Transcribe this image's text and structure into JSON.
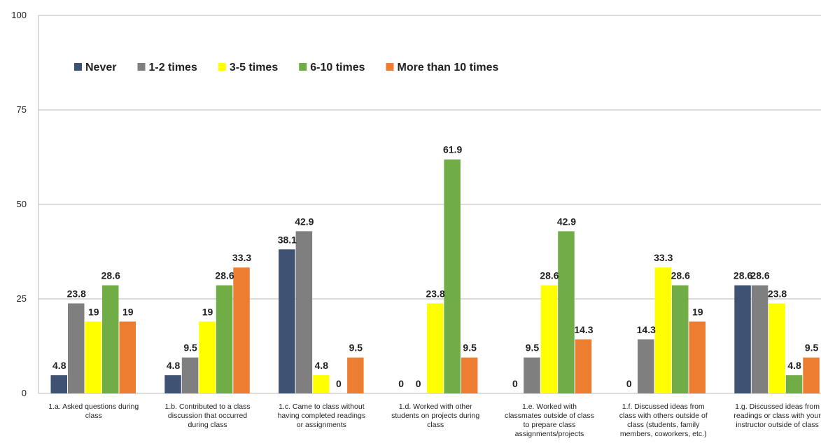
{
  "chart_data": {
    "type": "bar",
    "ylim": [
      0,
      100
    ],
    "yticks": [
      0,
      25,
      50,
      75,
      100
    ],
    "legend_position": "top-left",
    "grid": true,
    "categories": [
      [
        "1.a. Asked questions during",
        "class"
      ],
      [
        "1.b. Contributed to a class",
        "discussion that occurred",
        "during class"
      ],
      [
        "1.c. Came to class without",
        "having completed readings",
        "or assignments"
      ],
      [
        "1.d. Worked with other",
        "students on projects during",
        "class"
      ],
      [
        "1.e. Worked with",
        "classmates outside of class",
        "to prepare class",
        "assignments/projects"
      ],
      [
        "1.f. Discussed ideas from",
        "class with others outside of",
        "class (students, family",
        "members, coworkers, etc.)"
      ],
      [
        "1.g. Discussed ideas from",
        "readings or class with your",
        "instructor outside of class"
      ]
    ],
    "series": [
      {
        "name": "Never",
        "color": "#3f5274",
        "values": [
          4.8,
          4.8,
          38.1,
          0,
          0,
          0,
          28.6
        ]
      },
      {
        "name": "1-2 times",
        "color": "#7f7f7f",
        "values": [
          23.8,
          9.5,
          42.9,
          0,
          9.5,
          14.3,
          28.6
        ]
      },
      {
        "name": "3-5 times",
        "color": "#ffff00",
        "values": [
          19,
          19,
          4.8,
          23.8,
          28.6,
          33.3,
          23.8
        ]
      },
      {
        "name": "6-10 times",
        "color": "#70ad47",
        "values": [
          28.6,
          28.6,
          0,
          61.9,
          42.9,
          28.6,
          4.8
        ]
      },
      {
        "name": "More than 10 times",
        "color": "#ed7d31",
        "values": [
          19,
          33.3,
          9.5,
          9.5,
          14.3,
          19,
          9.5
        ]
      }
    ]
  }
}
